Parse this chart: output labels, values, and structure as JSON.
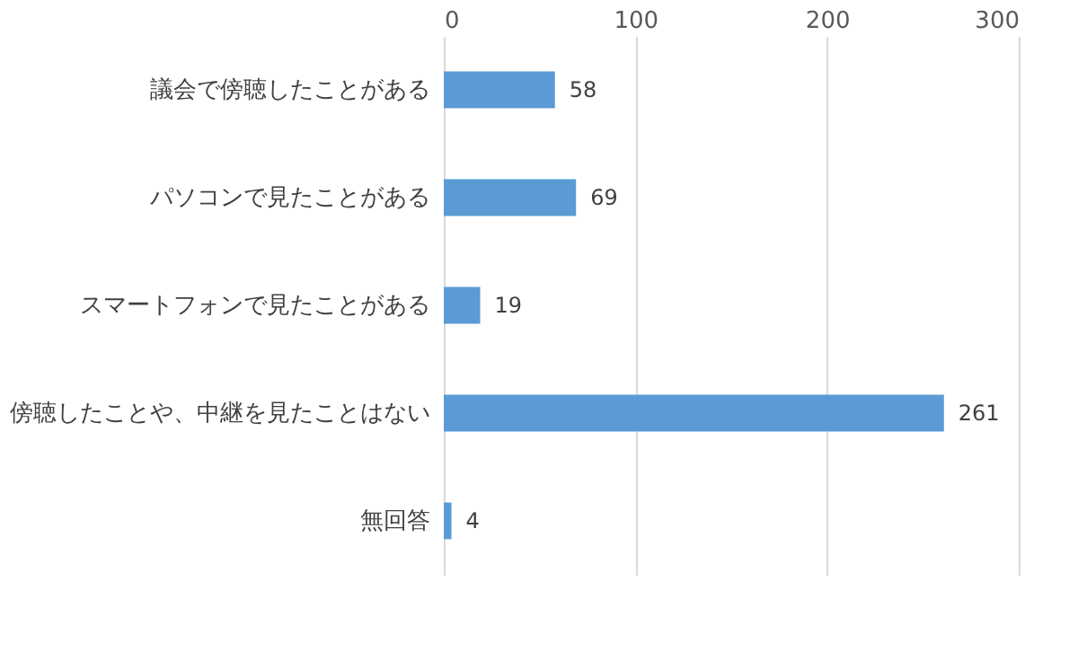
{
  "chart_data": {
    "type": "bar",
    "orientation": "horizontal",
    "categories": [
      "議会で傍聴したことがある",
      "パソコンで見たことがある",
      "スマートフォンで見たことがある",
      "傍聴したことや、中継を見たことはない",
      "無回答"
    ],
    "values": [
      58,
      69,
      19,
      261,
      4
    ],
    "color": "#5b9bd5",
    "xlim": [
      0,
      300
    ],
    "xticks": [
      0,
      100,
      200,
      300
    ],
    "grid": "x",
    "data_labels": true
  }
}
